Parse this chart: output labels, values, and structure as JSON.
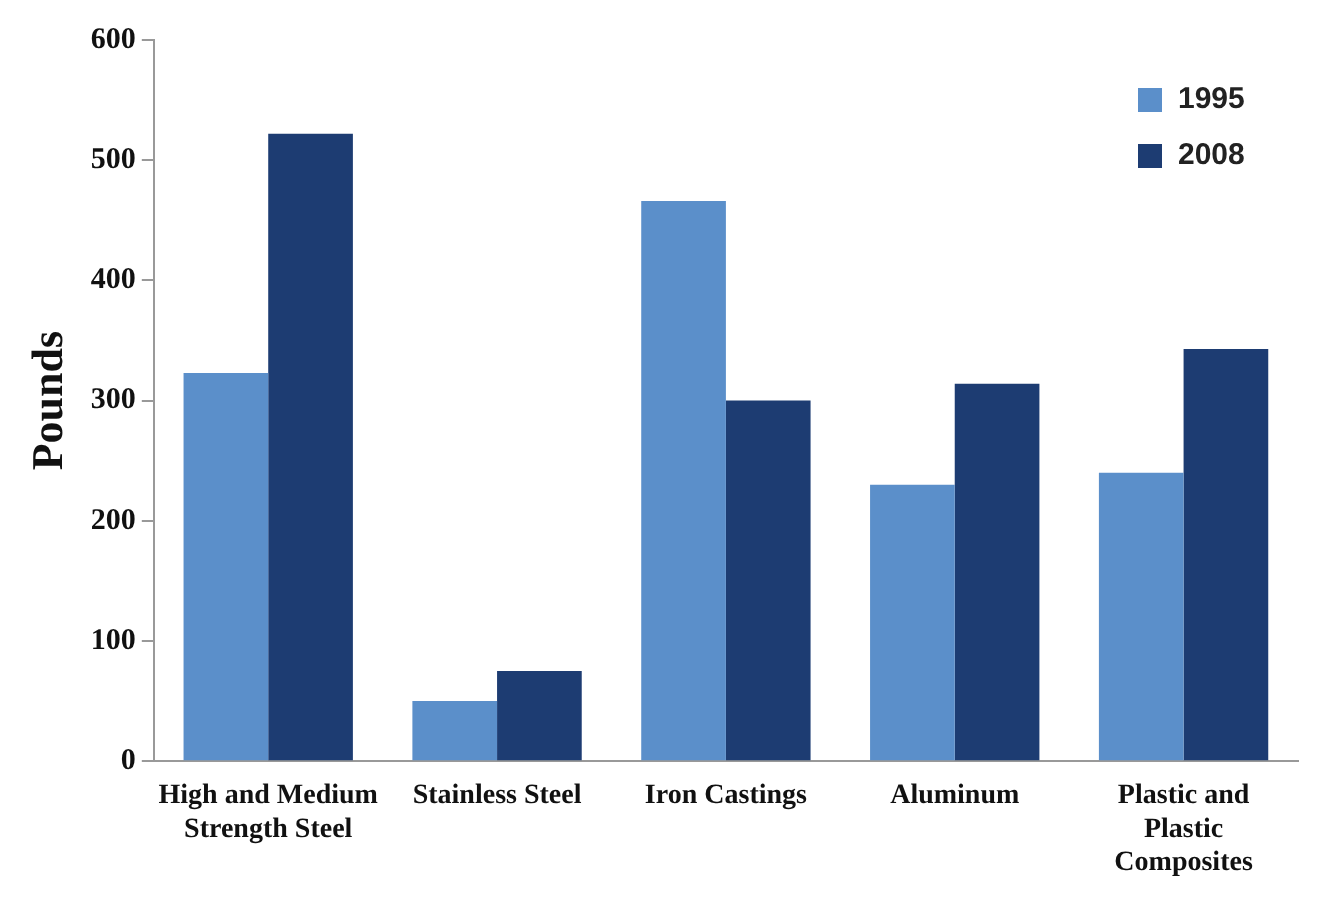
{
  "chart_data": {
    "type": "bar",
    "ylabel": "Pounds",
    "categories": [
      "High and Medium Strength Steel",
      "Stainless Steel",
      "Iron Castings",
      "Aluminum",
      "Plastic and Plastic Composites"
    ],
    "series": [
      {
        "name": "1995",
        "color": "#5b8fca",
        "values": [
          323,
          50,
          466,
          230,
          240
        ]
      },
      {
        "name": "2008",
        "color": "#1d3c72",
        "values": [
          522,
          75,
          300,
          314,
          343
        ]
      }
    ],
    "ylim": [
      0,
      600
    ],
    "yticks": [
      0,
      100,
      200,
      300,
      400,
      500,
      600
    ],
    "grid": false,
    "legend": "top right"
  }
}
